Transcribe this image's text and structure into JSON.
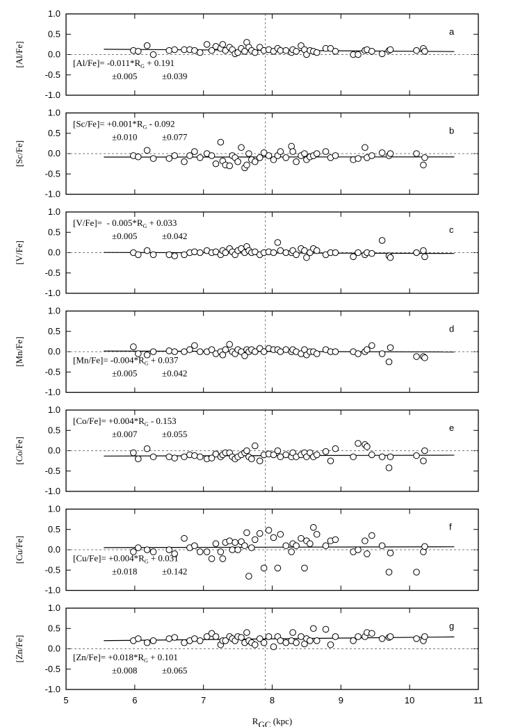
{
  "chart_data": [
    {
      "type": "scatter",
      "ylabel": "[Al/Fe]",
      "label": "a",
      "annotation_corner": "bottom-left",
      "annotation": {
        "eq_left": "[Al/Fe]= -0.011*R",
        "eq_sub": "G",
        "eq_right": " + 0.191",
        "err_slope": "±0.005",
        "err_intercept": "±0.039"
      },
      "x": [
        5.98,
        6.05,
        6.18,
        6.27,
        6.5,
        6.58,
        6.72,
        6.8,
        6.87,
        6.95,
        7.05,
        7.12,
        7.18,
        7.25,
        7.28,
        7.32,
        7.38,
        7.42,
        7.46,
        7.5,
        7.55,
        7.6,
        7.63,
        7.66,
        7.7,
        7.75,
        7.82,
        7.88,
        7.95,
        8.02,
        8.08,
        8.12,
        8.2,
        8.28,
        8.3,
        8.35,
        8.42,
        8.47,
        8.5,
        8.55,
        8.6,
        8.65,
        8.78,
        8.85,
        8.92,
        9.18,
        9.25,
        9.35,
        9.38,
        9.45,
        9.6,
        9.7,
        9.72,
        10.1,
        10.2,
        10.22
      ],
      "values": [
        0.1,
        0.08,
        0.22,
        0.0,
        0.1,
        0.12,
        0.12,
        0.12,
        0.1,
        0.05,
        0.25,
        0.1,
        0.2,
        0.15,
        0.25,
        0.1,
        0.18,
        0.12,
        0.02,
        0.05,
        0.15,
        0.08,
        0.3,
        0.18,
        0.1,
        0.05,
        0.18,
        0.1,
        0.12,
        0.08,
        0.15,
        0.1,
        0.1,
        0.05,
        0.12,
        0.08,
        0.22,
        0.12,
        0.0,
        0.1,
        0.08,
        0.05,
        0.15,
        0.15,
        0.08,
        0.0,
        0.0,
        0.1,
        0.12,
        0.08,
        0.02,
        0.1,
        0.12,
        0.1,
        0.15,
        0.08
      ],
      "fit_x": [
        5.55,
        10.65
      ],
      "fit_y": [
        0.13,
        0.074
      ],
      "hline": 0,
      "vline": 7.9,
      "xlim": [
        5,
        11
      ],
      "xticks": [
        5,
        6,
        7,
        8,
        9,
        10,
        11
      ],
      "xtick_labels": false,
      "ylim": [
        -1,
        1
      ],
      "yticks": [
        {
          "value": -1,
          "label": "-1.0"
        },
        {
          "value": -0.5,
          "label": "-0.5"
        },
        {
          "value": 0,
          "label": "0.0"
        },
        {
          "value": 0.5,
          "label": "0.5"
        },
        {
          "value": 1,
          "label": "1.0"
        }
      ]
    },
    {
      "type": "scatter",
      "ylabel": "[Sc/Fe]",
      "label": "b",
      "annotation_corner": "top-left",
      "annotation": {
        "eq_left": "[Sc/Fe]= +0.001*R",
        "eq_sub": "G",
        "eq_right": " - 0.092",
        "err_slope": "±0.010",
        "err_intercept": "±0.077"
      },
      "x": [
        5.98,
        6.05,
        6.18,
        6.27,
        6.5,
        6.58,
        6.72,
        6.8,
        6.87,
        6.95,
        7.05,
        7.12,
        7.18,
        7.25,
        7.28,
        7.32,
        7.38,
        7.42,
        7.46,
        7.5,
        7.55,
        7.6,
        7.63,
        7.66,
        7.7,
        7.75,
        7.82,
        7.88,
        7.95,
        8.02,
        8.08,
        8.12,
        8.2,
        8.28,
        8.3,
        8.35,
        8.42,
        8.47,
        8.5,
        8.55,
        8.6,
        8.65,
        8.78,
        8.85,
        8.92,
        9.18,
        9.25,
        9.35,
        9.38,
        9.45,
        9.6,
        9.7,
        9.72,
        10.1,
        10.2,
        10.22
      ],
      "values": [
        -0.05,
        -0.08,
        0.08,
        -0.12,
        -0.12,
        -0.05,
        -0.2,
        -0.05,
        0.05,
        -0.1,
        0.0,
        -0.05,
        -0.25,
        0.28,
        -0.18,
        -0.28,
        -0.3,
        -0.05,
        -0.1,
        -0.2,
        0.15,
        -0.35,
        -0.28,
        0.0,
        -0.15,
        -0.2,
        -0.1,
        0.02,
        -0.05,
        -0.15,
        -0.05,
        0.05,
        -0.1,
        0.18,
        0.05,
        -0.2,
        -0.05,
        0.0,
        -0.15,
        -0.08,
        -0.05,
        0.0,
        0.05,
        -0.1,
        -0.05,
        -0.15,
        -0.12,
        0.15,
        -0.1,
        -0.05,
        0.02,
        -0.05,
        0.0,
        0.0,
        -0.28,
        -0.1
      ],
      "fit_x": [
        5.55,
        10.65
      ],
      "fit_y": [
        -0.086,
        -0.081
      ],
      "hline": 0,
      "vline": 7.9,
      "xlim": [
        5,
        11
      ],
      "xticks": [
        5,
        6,
        7,
        8,
        9,
        10,
        11
      ],
      "xtick_labels": false,
      "ylim": [
        -1,
        1
      ],
      "yticks": [
        {
          "value": -1,
          "label": "-1.0"
        },
        {
          "value": -0.5,
          "label": "-0.5"
        },
        {
          "value": 0,
          "label": "0.0"
        },
        {
          "value": 0.5,
          "label": "0.5"
        },
        {
          "value": 1,
          "label": "1.0"
        }
      ]
    },
    {
      "type": "scatter",
      "ylabel": "[V/Fe]",
      "label": "c",
      "annotation_corner": "top-left",
      "annotation": {
        "eq_left": "[V/Fe]=  - 0.005*R",
        "eq_sub": "G",
        "eq_right": " + 0.033",
        "err_slope": "±0.005",
        "err_intercept": "±0.042"
      },
      "x": [
        5.98,
        6.05,
        6.18,
        6.27,
        6.5,
        6.58,
        6.72,
        6.8,
        6.87,
        6.95,
        7.05,
        7.12,
        7.18,
        7.25,
        7.28,
        7.32,
        7.38,
        7.42,
        7.46,
        7.5,
        7.55,
        7.6,
        7.63,
        7.66,
        7.7,
        7.75,
        7.82,
        7.88,
        7.95,
        8.02,
        8.08,
        8.12,
        8.2,
        8.28,
        8.3,
        8.35,
        8.42,
        8.47,
        8.5,
        8.55,
        8.6,
        8.65,
        8.78,
        8.85,
        8.92,
        9.18,
        9.25,
        9.35,
        9.38,
        9.45,
        9.6,
        9.7,
        9.72,
        10.1,
        10.2,
        10.22
      ],
      "values": [
        0.0,
        -0.05,
        0.05,
        -0.05,
        -0.05,
        -0.08,
        -0.05,
        0.0,
        0.02,
        0.0,
        0.05,
        0.0,
        0.02,
        -0.05,
        0.05,
        0.0,
        0.1,
        0.02,
        -0.05,
        0.05,
        0.1,
        0.0,
        0.15,
        0.05,
        0.0,
        0.02,
        -0.05,
        0.0,
        0.02,
        0.0,
        0.25,
        0.05,
        0.0,
        0.0,
        0.05,
        -0.05,
        0.1,
        0.05,
        -0.12,
        0.0,
        0.1,
        0.05,
        -0.05,
        0.0,
        0.0,
        -0.1,
        0.0,
        -0.05,
        0.0,
        -0.02,
        0.3,
        -0.08,
        -0.12,
        0.0,
        0.05,
        -0.1
      ],
      "fit_x": [
        5.55,
        10.65
      ],
      "fit_y": [
        0.005,
        -0.02
      ],
      "hline": 0,
      "vline": 7.9,
      "xlim": [
        5,
        11
      ],
      "xticks": [
        5,
        6,
        7,
        8,
        9,
        10,
        11
      ],
      "xtick_labels": false,
      "ylim": [
        -1,
        1
      ],
      "yticks": [
        {
          "value": -1,
          "label": "-1.0"
        },
        {
          "value": -0.5,
          "label": "-0.5"
        },
        {
          "value": 0,
          "label": "0.0"
        },
        {
          "value": 0.5,
          "label": "0.5"
        },
        {
          "value": 1,
          "label": "1.0"
        }
      ]
    },
    {
      "type": "scatter",
      "ylabel": "[Mn/Fe]",
      "label": "d",
      "annotation_corner": "bottom-left",
      "annotation": {
        "eq_left": "[Mn/Fe]= -0.004*R",
        "eq_sub": "G",
        "eq_right": " + 0.037",
        "err_slope": "±0.005",
        "err_intercept": "±0.042"
      },
      "x": [
        5.98,
        6.05,
        6.18,
        6.27,
        6.5,
        6.58,
        6.72,
        6.8,
        6.87,
        6.95,
        7.05,
        7.12,
        7.18,
        7.25,
        7.28,
        7.32,
        7.38,
        7.42,
        7.46,
        7.5,
        7.55,
        7.6,
        7.63,
        7.66,
        7.7,
        7.75,
        7.82,
        7.88,
        7.95,
        8.02,
        8.08,
        8.12,
        8.2,
        8.28,
        8.3,
        8.35,
        8.42,
        8.47,
        8.5,
        8.55,
        8.6,
        8.65,
        8.78,
        8.85,
        8.92,
        9.18,
        9.25,
        9.35,
        9.38,
        9.45,
        9.6,
        9.7,
        9.72,
        10.1,
        10.2,
        10.22
      ],
      "values": [
        0.12,
        -0.05,
        -0.08,
        0.0,
        0.02,
        0.0,
        0.0,
        0.05,
        0.15,
        0.0,
        0.0,
        0.05,
        -0.05,
        0.0,
        -0.08,
        0.05,
        0.18,
        0.0,
        -0.05,
        0.05,
        0.0,
        -0.1,
        0.05,
        0.0,
        0.05,
        0.0,
        0.08,
        0.0,
        0.08,
        0.05,
        0.05,
        0.0,
        0.05,
        0.0,
        0.05,
        0.0,
        -0.05,
        0.05,
        -0.08,
        0.0,
        0.0,
        -0.05,
        0.05,
        0.0,
        0.0,
        0.0,
        -0.05,
        0.0,
        0.05,
        0.15,
        -0.05,
        -0.25,
        0.1,
        -0.12,
        -0.12,
        -0.15
      ],
      "fit_x": [
        5.55,
        10.65
      ],
      "fit_y": [
        0.015,
        -0.006
      ],
      "hline": 0,
      "vline": 7.9,
      "xlim": [
        5,
        11
      ],
      "xticks": [
        5,
        6,
        7,
        8,
        9,
        10,
        11
      ],
      "xtick_labels": false,
      "ylim": [
        -1,
        1
      ],
      "yticks": [
        {
          "value": -1,
          "label": "-1.0"
        },
        {
          "value": -0.5,
          "label": "-0.5"
        },
        {
          "value": 0,
          "label": "0.0"
        },
        {
          "value": 0.5,
          "label": "0.5"
        },
        {
          "value": 1,
          "label": "1.0"
        }
      ]
    },
    {
      "type": "scatter",
      "ylabel": "[Co/Fe]",
      "label": "e",
      "annotation_corner": "top-left",
      "annotation": {
        "eq_left": "[Co/Fe]= +0.004*R",
        "eq_sub": "G",
        "eq_right": " - 0.153",
        "err_slope": "±0.007",
        "err_intercept": "±0.055"
      },
      "x": [
        5.98,
        6.05,
        6.18,
        6.27,
        6.5,
        6.58,
        6.72,
        6.8,
        6.87,
        6.95,
        7.05,
        7.12,
        7.18,
        7.25,
        7.28,
        7.32,
        7.38,
        7.42,
        7.46,
        7.5,
        7.55,
        7.6,
        7.63,
        7.66,
        7.7,
        7.75,
        7.82,
        7.88,
        7.95,
        8.02,
        8.08,
        8.12,
        8.2,
        8.28,
        8.3,
        8.35,
        8.42,
        8.47,
        8.5,
        8.55,
        8.6,
        8.65,
        8.78,
        8.85,
        8.92,
        9.18,
        9.25,
        9.35,
        9.38,
        9.45,
        9.6,
        9.7,
        9.72,
        10.1,
        10.2,
        10.22
      ],
      "values": [
        -0.05,
        -0.2,
        0.05,
        -0.15,
        -0.15,
        -0.18,
        -0.15,
        -0.1,
        -0.12,
        -0.15,
        -0.2,
        -0.18,
        -0.08,
        -0.15,
        -0.1,
        -0.05,
        -0.05,
        -0.15,
        -0.2,
        -0.15,
        -0.1,
        -0.05,
        0.0,
        -0.15,
        -0.2,
        0.12,
        -0.25,
        -0.1,
        -0.08,
        -0.1,
        0.0,
        -0.15,
        -0.1,
        -0.15,
        -0.05,
        -0.15,
        -0.1,
        -0.05,
        -0.15,
        -0.05,
        -0.15,
        -0.1,
        -0.02,
        -0.25,
        0.05,
        -0.15,
        0.18,
        0.15,
        0.1,
        -0.1,
        -0.15,
        -0.42,
        -0.15,
        -0.12,
        -0.25,
        0.0
      ],
      "fit_x": [
        5.55,
        10.65
      ],
      "fit_y": [
        -0.131,
        -0.11
      ],
      "hline": 0,
      "vline": 7.9,
      "xlim": [
        5,
        11
      ],
      "xticks": [
        5,
        6,
        7,
        8,
        9,
        10,
        11
      ],
      "xtick_labels": false,
      "ylim": [
        -1,
        1
      ],
      "yticks": [
        {
          "value": -1,
          "label": "-1.0"
        },
        {
          "value": -0.5,
          "label": "-0.5"
        },
        {
          "value": 0,
          "label": "0.0"
        },
        {
          "value": 0.5,
          "label": "0.5"
        },
        {
          "value": 1,
          "label": "1.0"
        }
      ]
    },
    {
      "type": "scatter",
      "ylabel": "[Cu/Fe]",
      "label": "f",
      "annotation_corner": "bottom-left",
      "annotation": {
        "eq_left": "[Cu/Fe]= +0.004*R",
        "eq_sub": "G",
        "eq_right": " + 0.031",
        "err_slope": "±0.018",
        "err_intercept": "±0.142"
      },
      "x": [
        5.98,
        6.05,
        6.18,
        6.27,
        6.5,
        6.58,
        6.72,
        6.8,
        6.87,
        6.95,
        7.05,
        7.12,
        7.18,
        7.25,
        7.28,
        7.32,
        7.38,
        7.42,
        7.46,
        7.5,
        7.55,
        7.6,
        7.63,
        7.66,
        7.7,
        7.75,
        7.82,
        7.88,
        7.95,
        8.02,
        8.08,
        8.12,
        8.2,
        8.28,
        8.3,
        8.35,
        8.42,
        8.47,
        8.5,
        8.55,
        8.6,
        8.65,
        8.78,
        8.85,
        8.92,
        9.18,
        9.25,
        9.35,
        9.38,
        9.45,
        9.6,
        9.7,
        9.72,
        10.1,
        10.2,
        10.22
      ],
      "values": [
        -0.05,
        0.05,
        0.0,
        -0.05,
        0.0,
        -0.1,
        0.28,
        0.05,
        0.1,
        -0.05,
        -0.05,
        -0.22,
        0.15,
        -0.05,
        -0.22,
        0.18,
        0.22,
        0.0,
        0.18,
        0.0,
        0.2,
        0.1,
        0.42,
        -0.65,
        0.05,
        0.25,
        0.4,
        -0.45,
        0.48,
        0.3,
        -0.45,
        0.38,
        0.1,
        -0.05,
        0.15,
        0.1,
        0.28,
        -0.45,
        0.22,
        0.15,
        0.55,
        0.38,
        0.1,
        0.22,
        0.25,
        -0.05,
        0.0,
        0.22,
        -0.1,
        0.35,
        0.1,
        -0.55,
        -0.08,
        -0.55,
        -0.05,
        0.08
      ],
      "fit_x": [
        5.55,
        10.65
      ],
      "fit_y": [
        0.053,
        0.074
      ],
      "hline": 0,
      "vline": 7.9,
      "xlim": [
        5,
        11
      ],
      "xticks": [
        5,
        6,
        7,
        8,
        9,
        10,
        11
      ],
      "xtick_labels": false,
      "ylim": [
        -1,
        1
      ],
      "yticks": [
        {
          "value": -1,
          "label": "-1.0"
        },
        {
          "value": -0.5,
          "label": "-0.5"
        },
        {
          "value": 0,
          "label": "0.0"
        },
        {
          "value": 0.5,
          "label": "0.5"
        },
        {
          "value": 1,
          "label": "1.0"
        }
      ]
    },
    {
      "type": "scatter",
      "ylabel": "[Zn/Fe]",
      "label": "g",
      "annotation_corner": "bottom-left",
      "annotation": {
        "eq_left": "[Zn/Fe]= +0.018*R",
        "eq_sub": "G",
        "eq_right": " + 0.101",
        "err_slope": "±0.008",
        "err_intercept": "±0.065"
      },
      "x": [
        5.98,
        6.05,
        6.18,
        6.27,
        6.5,
        6.58,
        6.72,
        6.8,
        6.87,
        6.95,
        7.05,
        7.12,
        7.18,
        7.25,
        7.28,
        7.32,
        7.38,
        7.42,
        7.46,
        7.5,
        7.55,
        7.6,
        7.63,
        7.66,
        7.7,
        7.75,
        7.82,
        7.88,
        7.95,
        8.02,
        8.08,
        8.12,
        8.2,
        8.28,
        8.3,
        8.35,
        8.42,
        8.47,
        8.5,
        8.55,
        8.6,
        8.65,
        8.78,
        8.85,
        8.92,
        9.18,
        9.25,
        9.35,
        9.38,
        9.45,
        9.6,
        9.7,
        9.72,
        10.1,
        10.2,
        10.22
      ],
      "values": [
        0.2,
        0.25,
        0.15,
        0.2,
        0.25,
        0.28,
        0.15,
        0.2,
        0.25,
        0.2,
        0.3,
        0.38,
        0.3,
        0.1,
        0.2,
        0.2,
        0.3,
        0.25,
        0.2,
        0.3,
        0.28,
        0.15,
        0.4,
        0.2,
        0.15,
        0.1,
        0.25,
        0.15,
        0.3,
        0.05,
        0.3,
        0.2,
        0.15,
        0.2,
        0.4,
        0.15,
        0.3,
        0.12,
        0.25,
        0.2,
        0.5,
        0.2,
        0.48,
        0.1,
        0.3,
        0.2,
        0.3,
        0.3,
        0.4,
        0.38,
        0.25,
        0.28,
        0.3,
        0.25,
        0.2,
        0.3
      ],
      "fit_x": [
        5.55,
        10.65
      ],
      "fit_y": [
        0.201,
        0.293
      ],
      "hline": 0,
      "vline": 7.9,
      "xlim": [
        5,
        11
      ],
      "xticks": [
        5,
        6,
        7,
        8,
        9,
        10,
        11
      ],
      "xtick_labels": true,
      "ylim": [
        -1,
        1
      ],
      "yticks": [
        {
          "value": -1,
          "label": "-1.0"
        },
        {
          "value": -0.5,
          "label": "-0.5"
        },
        {
          "value": 0,
          "label": "0.0"
        },
        {
          "value": 0.5,
          "label": "0.5"
        },
        {
          "value": 1,
          "label": "1.0"
        }
      ],
      "xlabel": {
        "main": "R",
        "sub": "GC",
        "unit": " (kpc)"
      }
    }
  ]
}
